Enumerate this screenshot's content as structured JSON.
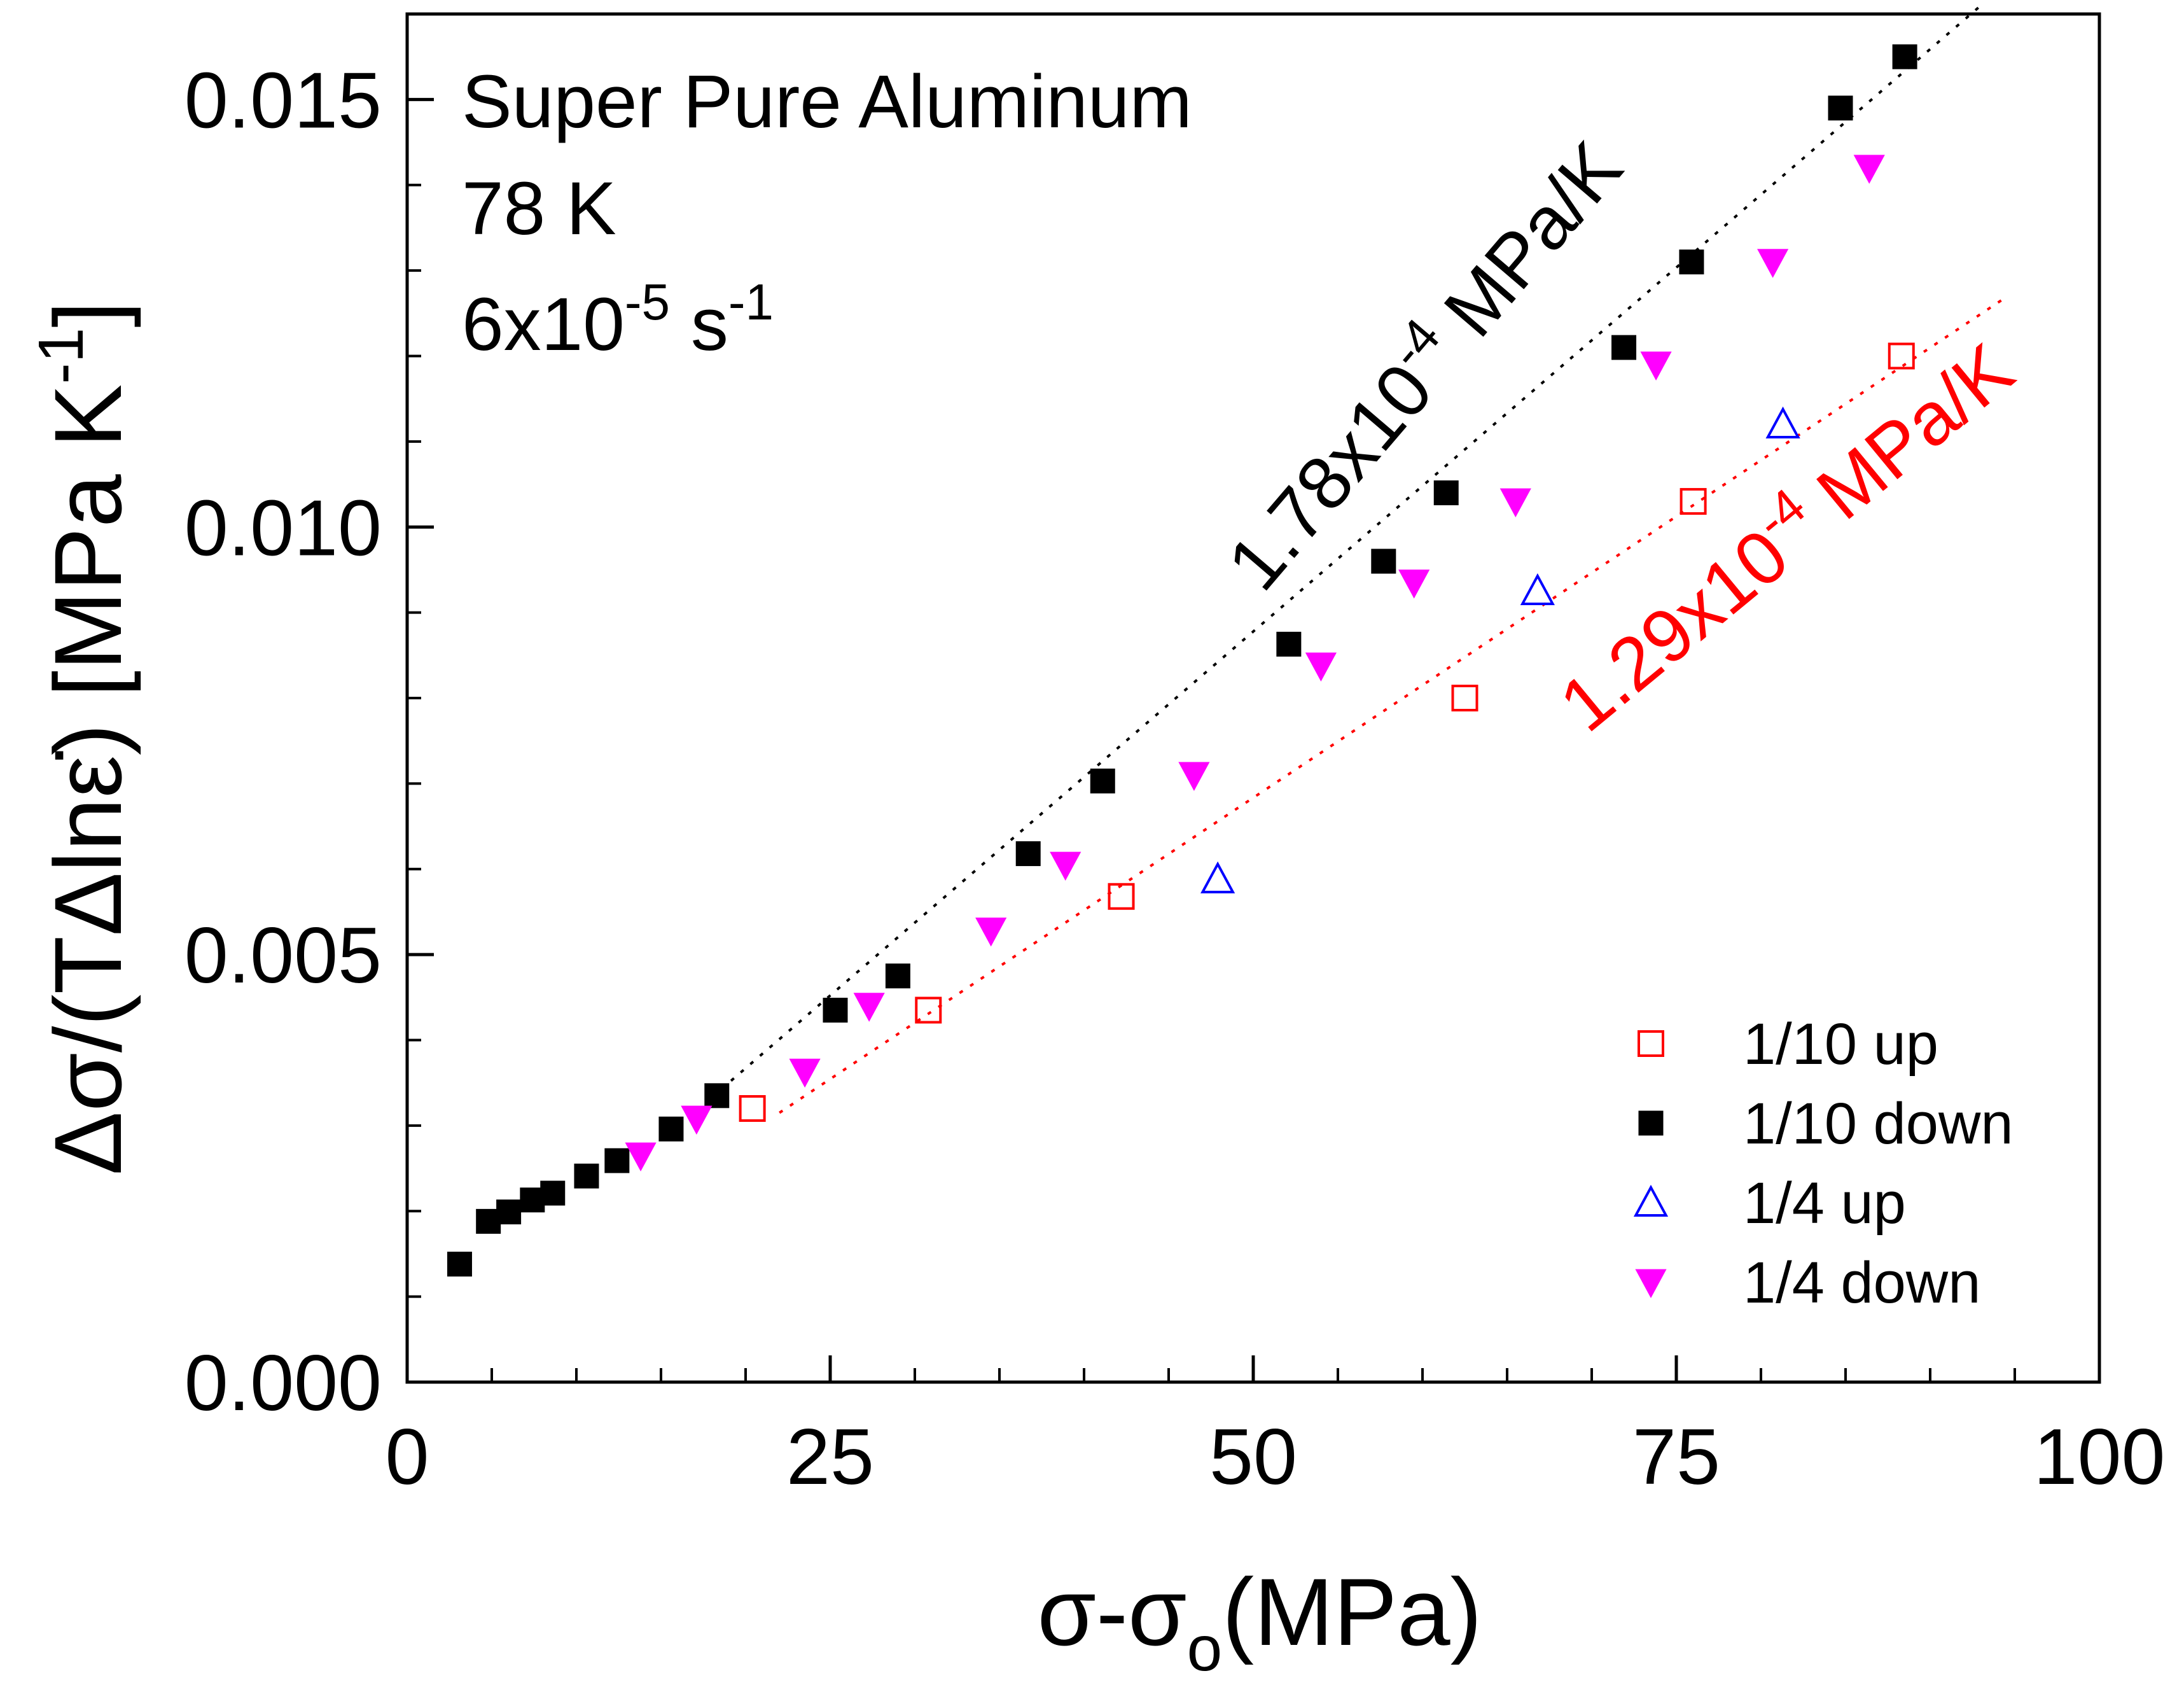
{
  "chart_data": {
    "type": "scatter",
    "title": "",
    "xlabel": "σ-σo(MPa)",
    "xlabel_main": "σ-σ",
    "xlabel_sub": "o",
    "xlabel_tail": "(MPa)",
    "ylabel": "Δσ/(TΔlnε̇) [MPa K⁻¹]",
    "ylabel_main": "Δσ/(TΔlnε̇) [MPa K",
    "ylabel_sup": "-1",
    "ylabel_tail": "]",
    "xlim": [
      0,
      100
    ],
    "ylim": [
      0,
      0.016
    ],
    "xticks": [
      0,
      25,
      50,
      75,
      100
    ],
    "xtick_labels": [
      "0",
      "25",
      "50",
      "75",
      "100"
    ],
    "yticks": [
      0.0,
      0.005,
      0.01,
      0.015
    ],
    "ytick_labels": [
      "0.000",
      "0.005",
      "0.010",
      "0.015"
    ],
    "grid": false,
    "legend_position": "bottom-right",
    "annotations": {
      "material": "Super Pure Aluminum",
      "temperature": "78 K",
      "rate_main": "6x10",
      "rate_sup1": "-5",
      "rate_unit": " s",
      "rate_sup2": "-1"
    },
    "fits": [
      {
        "name": "fit-black",
        "color": "#000000",
        "slope_label_main": "1.78x10",
        "slope_label_sup": "-4",
        "slope_label_tail": " MPa/K",
        "x": [
          18,
          93
        ],
        "y": [
          0.00333,
          0.0161
        ]
      },
      {
        "name": "fit-red",
        "color": "#ff0000",
        "slope_label_main": "1.29x10",
        "slope_label_sup": "-4",
        "slope_label_tail": " MPa/K",
        "x": [
          22,
          94.5
        ],
        "y": [
          0.00315,
          0.01269
        ]
      }
    ],
    "series": [
      {
        "name": "1/10 up",
        "marker": "open-square",
        "color": "#ff0000",
        "x": [
          20.4,
          30.8,
          42.2,
          62.5,
          76.0,
          88.3
        ],
        "y": [
          0.0032,
          0.00435,
          0.00568,
          0.008,
          0.0103,
          0.012
        ]
      },
      {
        "name": "1/10 down",
        "marker": "filled-square",
        "color": "#000000",
        "x": [
          3.1,
          4.8,
          6.0,
          7.4,
          8.6,
          10.6,
          12.4,
          15.6,
          18.3,
          25.3,
          29.0,
          36.7,
          41.1,
          52.1,
          57.7,
          61.4,
          71.9,
          75.9,
          84.7,
          88.5
        ],
        "y": [
          0.00138,
          0.00188,
          0.00199,
          0.00213,
          0.00221,
          0.00241,
          0.00259,
          0.00296,
          0.00335,
          0.00435,
          0.00475,
          0.00618,
          0.00703,
          0.00863,
          0.0096,
          0.0104,
          0.0121,
          0.0131,
          0.0149,
          0.0155
        ]
      },
      {
        "name": "1/4 up",
        "marker": "open-triangle-up",
        "color": "#0000ff",
        "x": [
          47.9,
          66.8,
          81.3
        ],
        "y": [
          0.00588,
          0.00925,
          0.0112
        ]
      },
      {
        "name": "1/4 down",
        "marker": "filled-triangle-down",
        "color": "#ff00ff",
        "x": [
          13.8,
          17.1,
          23.5,
          27.3,
          34.5,
          38.9,
          46.5,
          54.0,
          59.5,
          65.5,
          73.8,
          80.7,
          86.4
        ],
        "y": [
          0.00265,
          0.00308,
          0.00363,
          0.0044,
          0.00528,
          0.00605,
          0.0071,
          0.00838,
          0.00935,
          0.0103,
          0.0119,
          0.0131,
          0.0142
        ]
      }
    ]
  }
}
